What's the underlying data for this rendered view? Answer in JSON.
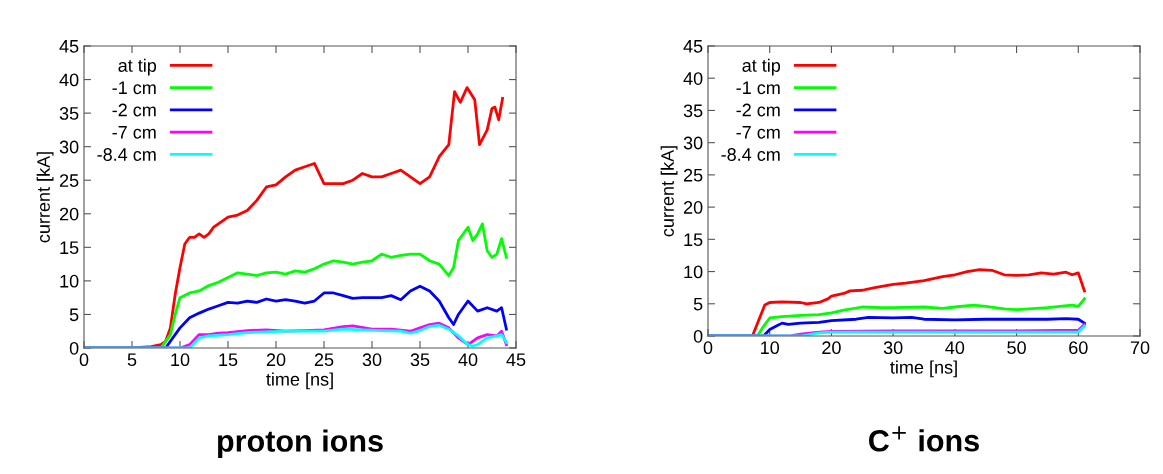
{
  "chart_data": [
    {
      "type": "line",
      "title": "proton ions",
      "xlabel": "time [ns]",
      "ylabel": "current [kA]",
      "xlim": [
        0,
        45
      ],
      "ylim": [
        0,
        45
      ],
      "xticks": [
        0,
        5,
        10,
        15,
        20,
        25,
        30,
        35,
        40,
        45
      ],
      "yticks": [
        0,
        5,
        10,
        15,
        20,
        25,
        30,
        35,
        40,
        45
      ],
      "legend": "top left",
      "grid": false,
      "series": [
        {
          "name": "at tip",
          "color": "#ff0000",
          "x": [
            0,
            5,
            7,
            8,
            8.5,
            9,
            9.5,
            10,
            10.5,
            11,
            11.5,
            12,
            12.5,
            13,
            13.5,
            14,
            15,
            16,
            17,
            18,
            19,
            20,
            21,
            22,
            23,
            24,
            25,
            26,
            27,
            28,
            29,
            30,
            31,
            32,
            33,
            34,
            35,
            36,
            37,
            38,
            38.6,
            39.2,
            39.9,
            40.7,
            41.2,
            42,
            42.5,
            42.8,
            43.2,
            43.6
          ],
          "values": [
            0,
            0,
            0.2,
            0.5,
            1,
            3,
            8,
            12,
            15.5,
            16.5,
            16.5,
            17,
            16.5,
            17,
            18,
            18.5,
            19.5,
            19.8,
            20.5,
            22,
            24,
            24.3,
            25.5,
            26.5,
            27,
            27.5,
            24.5,
            24.5,
            24.5,
            25,
            26,
            25.5,
            25.5,
            26,
            26.5,
            25.5,
            24.5,
            25.5,
            28.5,
            30.3,
            38.2,
            36.6,
            38.8,
            37,
            30.3,
            32.5,
            35.7,
            35.9,
            34,
            37.2
          ]
        },
        {
          "name": "-1 cm",
          "color": "#00ff00",
          "x": [
            0,
            8,
            9,
            9.5,
            10,
            11,
            12,
            13,
            14,
            15,
            16,
            17,
            18,
            19,
            20,
            21,
            22,
            23,
            24,
            25,
            26,
            27,
            28,
            29,
            30,
            31,
            32,
            33,
            34,
            35,
            36,
            37,
            38,
            38.5,
            39,
            40,
            40.5,
            41,
            41.5,
            42,
            42.5,
            43,
            43.5,
            44
          ],
          "values": [
            0,
            0,
            2,
            5,
            7.5,
            8.2,
            8.5,
            9.3,
            9.8,
            10.5,
            11.2,
            11,
            10.8,
            11.2,
            11.3,
            11,
            11.5,
            11.3,
            11.8,
            12.5,
            13,
            12.8,
            12.5,
            12.8,
            13,
            14,
            13.5,
            13.8,
            14,
            14,
            13,
            12.5,
            10.8,
            12,
            16,
            18,
            16,
            17,
            18.5,
            14.5,
            13.5,
            14,
            16.3,
            13.5
          ]
        },
        {
          "name": "-2 cm",
          "color": "#0000ff",
          "x": [
            0,
            8.5,
            9,
            10,
            11,
            12,
            13,
            14,
            15,
            16,
            17,
            18,
            19,
            20,
            21,
            22,
            23,
            24,
            25,
            26,
            27,
            28,
            29,
            30,
            31,
            32,
            33,
            34,
            35,
            36,
            37,
            38,
            38.5,
            39,
            40,
            41,
            42,
            43,
            43.5,
            44
          ],
          "values": [
            0,
            0,
            1,
            3,
            4.5,
            5.2,
            5.8,
            6.3,
            6.8,
            6.7,
            7,
            6.8,
            7.3,
            7,
            7.2,
            7,
            6.7,
            7,
            8.2,
            8.2,
            7.8,
            7.4,
            7.5,
            7.5,
            7.5,
            7.8,
            7.2,
            8.5,
            9.2,
            8.5,
            7,
            4.5,
            3.5,
            5,
            7,
            5.5,
            6,
            5.5,
            6,
            2.8
          ]
        },
        {
          "name": "-7 cm",
          "color": "#ff00ff",
          "x": [
            0,
            10,
            11,
            12,
            13,
            14,
            15,
            17,
            19,
            21,
            23,
            25,
            27,
            28,
            30,
            32,
            34,
            35,
            36,
            37,
            38,
            39,
            40,
            41,
            42,
            43,
            43.5,
            44
          ],
          "values": [
            0,
            0,
            0.5,
            2,
            2,
            2.2,
            2.3,
            2.6,
            2.7,
            2.5,
            2.6,
            2.7,
            3.2,
            3.3,
            2.8,
            2.8,
            2.5,
            3,
            3.5,
            3.7,
            3,
            1.5,
            0.5,
            1.5,
            2,
            1.8,
            2.5,
            0.5
          ]
        },
        {
          "name": "-8.4 cm",
          "color": "#00ffff",
          "x": [
            0,
            11,
            12,
            13,
            15,
            17,
            19,
            21,
            23,
            25,
            27,
            29,
            31,
            33,
            34,
            35,
            36,
            37,
            38,
            39,
            40,
            40.5,
            41,
            42,
            43,
            43.5,
            44
          ],
          "values": [
            0,
            0,
            1.5,
            1.8,
            2,
            2.3,
            2.4,
            2.5,
            2.5,
            2.5,
            2.8,
            2.7,
            2.6,
            2.5,
            2.2,
            2.6,
            3.2,
            3.4,
            2.8,
            1.8,
            0.5,
            0.3,
            0.5,
            1.5,
            1.8,
            2,
            0.8
          ]
        }
      ]
    },
    {
      "type": "line",
      "title": "C$^{+}$ ions",
      "xlabel": "time [ns]",
      "ylabel": "current [kA]",
      "xlim": [
        0,
        70
      ],
      "ylim": [
        0,
        45
      ],
      "xticks": [
        0,
        10,
        20,
        30,
        40,
        50,
        60,
        70
      ],
      "yticks": [
        0,
        5,
        10,
        15,
        20,
        25,
        30,
        35,
        40,
        45
      ],
      "legend": "top left",
      "grid": false,
      "series": [
        {
          "name": "at tip",
          "color": "#ff0000",
          "x": [
            0,
            7.2,
            9.2,
            10,
            12,
            15,
            16,
            18,
            19.5,
            20,
            22,
            23,
            25,
            27,
            30,
            32,
            35,
            38,
            40,
            42,
            44,
            46,
            48,
            50,
            52,
            54,
            56,
            58,
            59,
            60,
            61
          ],
          "values": [
            0,
            0,
            4.8,
            5.2,
            5.3,
            5.2,
            5,
            5.2,
            5.8,
            6.2,
            6.6,
            7,
            7.1,
            7.5,
            8,
            8.2,
            8.6,
            9.2,
            9.5,
            10,
            10.3,
            10.2,
            9.5,
            9.4,
            9.5,
            9.8,
            9.6,
            9.9,
            9.5,
            9.8,
            7
          ]
        },
        {
          "name": "-1 cm",
          "color": "#00ff00",
          "x": [
            0,
            8,
            9,
            10,
            12,
            15,
            18,
            20,
            22,
            25,
            28,
            30,
            35,
            38,
            40,
            43,
            45,
            48,
            50,
            52,
            55,
            57,
            59,
            60,
            61
          ],
          "values": [
            0,
            0,
            1.5,
            2.8,
            3,
            3.2,
            3.3,
            3.6,
            4,
            4.5,
            4.4,
            4.4,
            4.5,
            4.3,
            4.5,
            4.8,
            4.6,
            4.2,
            4.1,
            4.2,
            4.4,
            4.6,
            4.8,
            4.6,
            5.8
          ]
        },
        {
          "name": "-2 cm",
          "color": "#0000ff",
          "x": [
            0,
            9,
            10,
            11,
            12,
            13,
            15,
            18,
            20,
            24,
            26,
            30,
            33,
            35,
            40,
            45,
            50,
            55,
            58,
            60,
            61
          ],
          "values": [
            0,
            0,
            1,
            1.5,
            2,
            1.8,
            2,
            2.1,
            2.4,
            2.6,
            2.9,
            2.8,
            2.9,
            2.6,
            2.5,
            2.6,
            2.6,
            2.6,
            2.7,
            2.6,
            2
          ]
        },
        {
          "name": "-7 cm",
          "color": "#ff00ff",
          "x": [
            0,
            13,
            15,
            18,
            20,
            30,
            40,
            50,
            60,
            61
          ],
          "values": [
            0,
            0,
            0.3,
            0.6,
            0.7,
            0.8,
            0.8,
            0.8,
            0.9,
            1.8
          ]
        },
        {
          "name": "-8.4 cm",
          "color": "#00ffff",
          "x": [
            0,
            15,
            18,
            20,
            30,
            40,
            50,
            60,
            61
          ],
          "values": [
            0,
            0,
            0.5,
            0.6,
            0.6,
            0.6,
            0.6,
            0.6,
            1.5
          ]
        }
      ]
    }
  ]
}
